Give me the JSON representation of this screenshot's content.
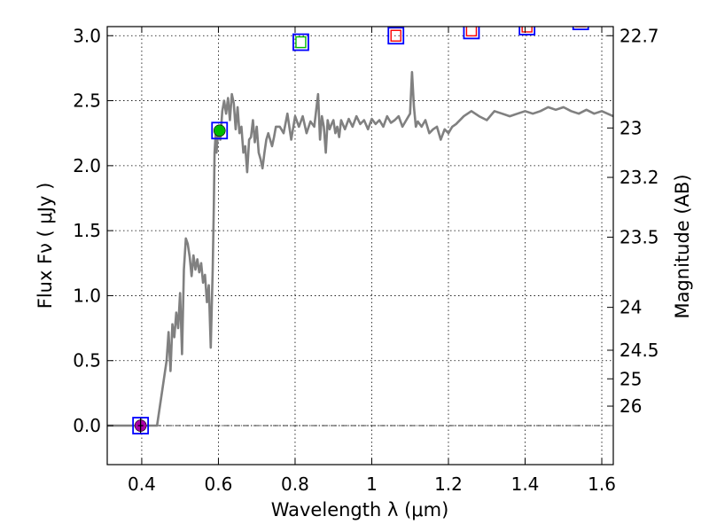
{
  "chart_data": {
    "type": "line",
    "xlabel": "Wavelength  λ (μm)",
    "ylabel": "Flux  Fν  ( μJy )",
    "y2label": "Magnitude (AB)",
    "xlim": [
      0.31,
      1.63
    ],
    "ylim": [
      -0.3,
      3.07
    ],
    "grid": true,
    "xticks": [
      {
        "value": 0.4,
        "label": "0.4"
      },
      {
        "value": 0.6,
        "label": "0.6"
      },
      {
        "value": 0.8,
        "label": "0.8"
      },
      {
        "value": 1.0,
        "label": "1"
      },
      {
        "value": 1.2,
        "label": "1.2"
      },
      {
        "value": 1.4,
        "label": "1.4"
      },
      {
        "value": 1.6,
        "label": "1.6"
      }
    ],
    "yticks": [
      {
        "value": 0.0,
        "label": "0.0"
      },
      {
        "value": 0.5,
        "label": "0.5"
      },
      {
        "value": 1.0,
        "label": "1.0"
      },
      {
        "value": 1.5,
        "label": "1.5"
      },
      {
        "value": 2.0,
        "label": "2.0"
      },
      {
        "value": 2.5,
        "label": "2.5"
      },
      {
        "value": 3.0,
        "label": "3.0"
      }
    ],
    "y2ticks": [
      {
        "flux": 3.0,
        "label": "22.7"
      },
      {
        "flux": 2.29,
        "label": "23"
      },
      {
        "flux": 1.91,
        "label": "23.2"
      },
      {
        "flux": 1.45,
        "label": "23.5"
      },
      {
        "flux": 0.91,
        "label": "24"
      },
      {
        "flux": 0.58,
        "label": "24.5"
      },
      {
        "flux": 0.36,
        "label": "25"
      },
      {
        "flux": 0.15,
        "label": "26"
      }
    ],
    "series": [
      {
        "color": "#808080",
        "x": [
          0.31,
          0.37,
          0.4,
          0.43,
          0.44,
          0.455,
          0.465,
          0.47,
          0.475,
          0.48,
          0.485,
          0.49,
          0.495,
          0.5,
          0.505,
          0.51,
          0.515,
          0.52,
          0.525,
          0.53,
          0.535,
          0.54,
          0.545,
          0.55,
          0.555,
          0.56,
          0.565,
          0.57,
          0.575,
          0.58,
          0.585,
          0.588,
          0.59,
          0.593,
          0.595,
          0.6,
          0.605,
          0.61,
          0.615,
          0.62,
          0.625,
          0.63,
          0.635,
          0.64,
          0.645,
          0.65,
          0.655,
          0.66,
          0.665,
          0.67,
          0.675,
          0.68,
          0.685,
          0.69,
          0.695,
          0.7,
          0.705,
          0.71,
          0.715,
          0.72,
          0.725,
          0.73,
          0.735,
          0.74,
          0.745,
          0.75,
          0.76,
          0.77,
          0.78,
          0.79,
          0.8,
          0.81,
          0.82,
          0.83,
          0.84,
          0.85,
          0.86,
          0.865,
          0.87,
          0.875,
          0.88,
          0.885,
          0.89,
          0.895,
          0.9,
          0.905,
          0.91,
          0.915,
          0.92,
          0.93,
          0.94,
          0.95,
          0.96,
          0.97,
          0.98,
          0.99,
          1.0,
          1.01,
          1.02,
          1.03,
          1.04,
          1.05,
          1.06,
          1.07,
          1.08,
          1.09,
          1.1,
          1.105,
          1.11,
          1.115,
          1.12,
          1.13,
          1.14,
          1.15,
          1.16,
          1.17,
          1.18,
          1.19,
          1.2,
          1.21,
          1.22,
          1.24,
          1.26,
          1.28,
          1.3,
          1.32,
          1.34,
          1.36,
          1.38,
          1.4,
          1.42,
          1.44,
          1.46,
          1.48,
          1.5,
          1.52,
          1.54,
          1.56,
          1.58,
          1.6,
          1.63
        ],
        "y": [
          0,
          0,
          0,
          0,
          0,
          0.3,
          0.5,
          0.72,
          0.42,
          0.78,
          0.68,
          0.87,
          0.75,
          1.02,
          0.55,
          1.2,
          1.44,
          1.4,
          1.3,
          1.15,
          1.31,
          1.2,
          1.28,
          1.18,
          1.25,
          1.1,
          1.16,
          0.95,
          1.08,
          0.6,
          1.2,
          1.7,
          2.1,
          2.25,
          2.1,
          2.3,
          2.2,
          2.42,
          2.5,
          2.4,
          2.52,
          2.35,
          2.55,
          2.48,
          2.28,
          2.45,
          2.25,
          2.3,
          2.1,
          2.15,
          1.95,
          2.2,
          2.22,
          2.35,
          2.18,
          2.3,
          2.1,
          2.05,
          1.98,
          2.1,
          2.2,
          2.25,
          2.2,
          2.15,
          2.22,
          2.3,
          2.3,
          2.25,
          2.4,
          2.2,
          2.38,
          2.3,
          2.38,
          2.25,
          2.34,
          2.3,
          2.55,
          2.2,
          2.38,
          2.3,
          2.1,
          2.35,
          2.28,
          2.32,
          2.35,
          2.25,
          2.3,
          2.22,
          2.35,
          2.28,
          2.36,
          2.3,
          2.38,
          2.32,
          2.35,
          2.28,
          2.36,
          2.32,
          2.35,
          2.3,
          2.38,
          2.33,
          2.35,
          2.38,
          2.3,
          2.35,
          2.4,
          2.72,
          2.45,
          2.3,
          2.34,
          2.3,
          2.35,
          2.25,
          2.28,
          2.3,
          2.2,
          2.28,
          2.25,
          2.3,
          2.32,
          2.38,
          2.42,
          2.38,
          2.35,
          2.42,
          2.4,
          2.38,
          2.4,
          2.42,
          2.4,
          2.42,
          2.45,
          2.43,
          2.45,
          2.42,
          2.4,
          2.43,
          2.4,
          2.42,
          2.38
        ]
      }
    ],
    "points": [
      {
        "x": 0.397,
        "y": 0.0,
        "box": "#0000ff",
        "fill": "#aa00aa",
        "marker": "circle",
        "err": 0.03
      },
      {
        "x": 0.603,
        "y": 2.27,
        "box": "#0000ff",
        "fill": "#00bb00",
        "marker": "circle",
        "err": 0
      },
      {
        "x": 0.815,
        "y": 2.95,
        "box": "#0000ff",
        "fill": "#00bb00",
        "marker": "square",
        "err": 0
      },
      {
        "x": 1.063,
        "y": 3.0,
        "box": "#0000ff",
        "fill": "#ff0000",
        "marker": "square",
        "err": 0
      },
      {
        "x": 1.26,
        "y": 3.04,
        "box": "#0000ff",
        "fill": "#ff0000",
        "marker": "square",
        "err": 0
      },
      {
        "x": 1.405,
        "y": 3.07,
        "box": "#0000ff",
        "fill": "#ff0000",
        "marker": "square",
        "err": 0
      },
      {
        "x": 1.545,
        "y": 3.11,
        "box": "#0000ff",
        "fill": "#ff0000",
        "marker": "square",
        "err": 0
      }
    ]
  }
}
